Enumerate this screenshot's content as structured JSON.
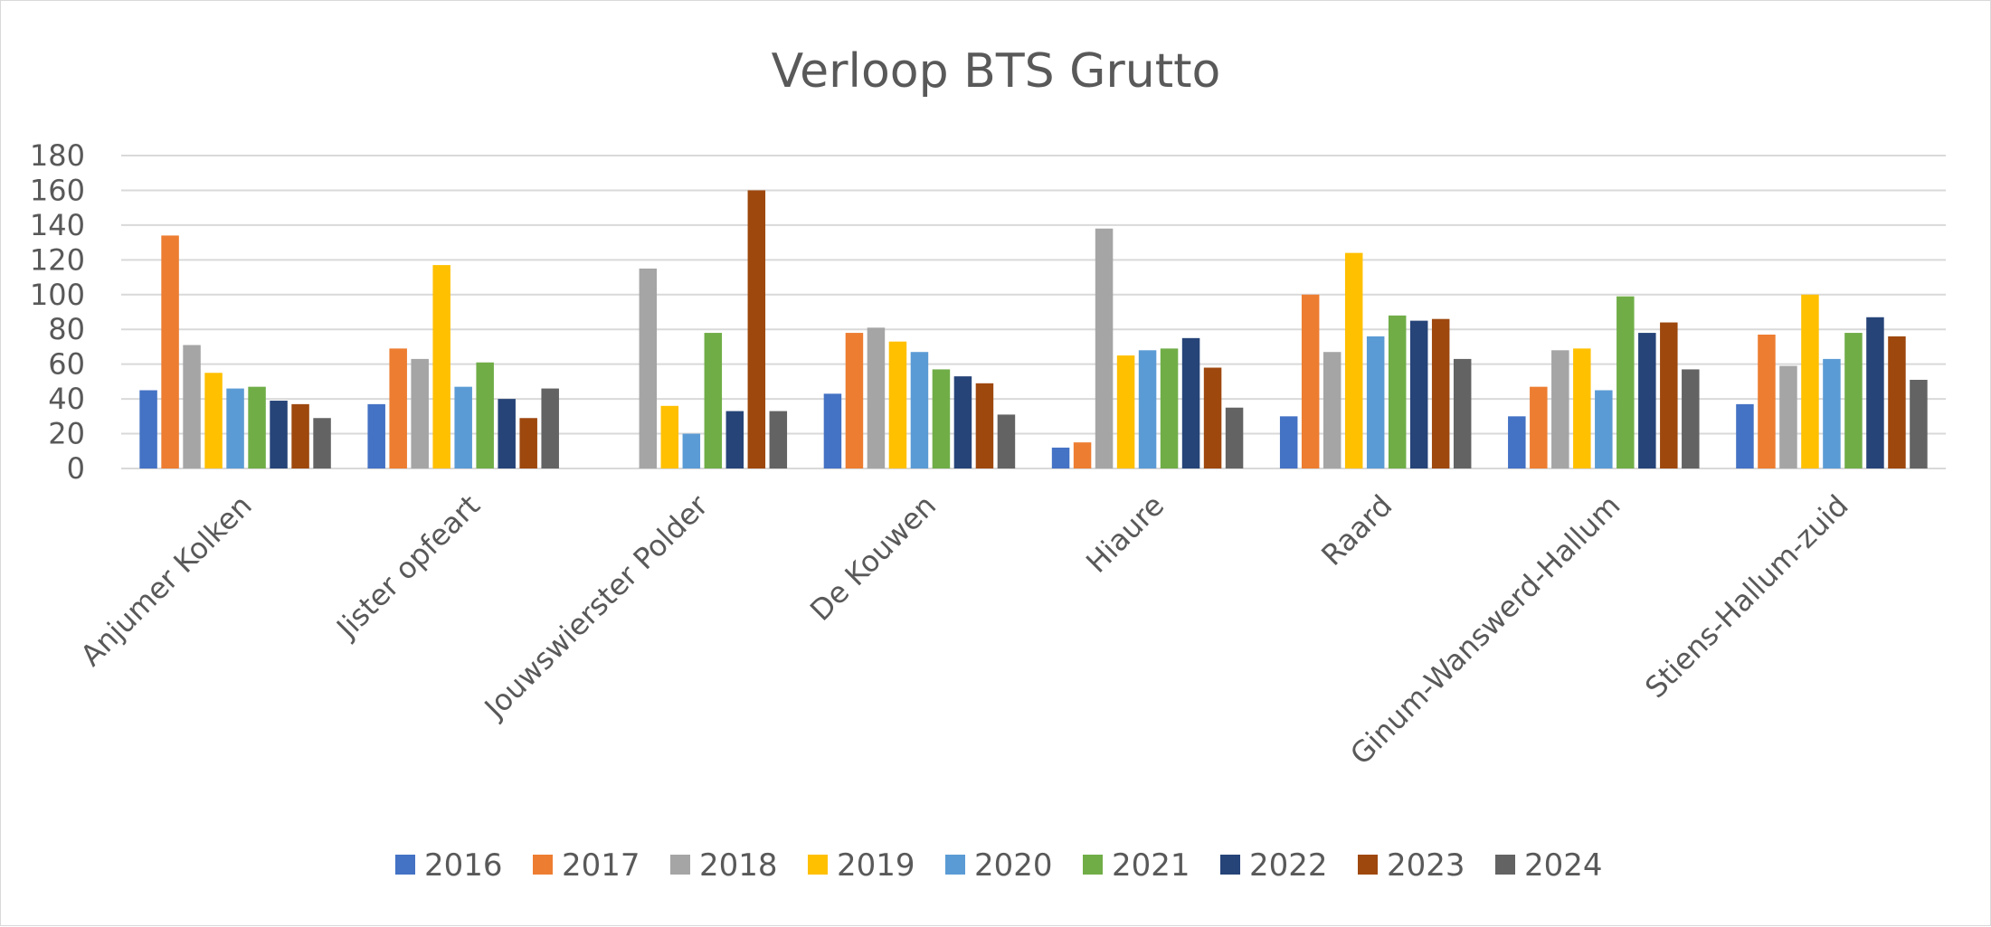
{
  "chart_data": {
    "type": "bar",
    "title": "Verloop BTS Grutto",
    "xlabel": "",
    "ylabel": "",
    "ylim": [
      0,
      180
    ],
    "yticks": [
      0,
      20,
      40,
      60,
      80,
      100,
      120,
      140,
      160,
      180
    ],
    "grid": true,
    "legend_position": "bottom",
    "categories": [
      "Anjumer Kolken",
      "Jister opfeart",
      "Jouwswierster Polder",
      "De Kouwen",
      "Hiaure",
      "Raard",
      "Ginum-Wanswerd-Hallum",
      "Stiens-Hallum-zuid"
    ],
    "series": [
      {
        "name": "2016",
        "color": "#4472c4",
        "values": [
          45,
          37,
          0,
          43,
          12,
          30,
          30,
          37
        ]
      },
      {
        "name": "2017",
        "color": "#ed7d31",
        "values": [
          134,
          69,
          0,
          78,
          15,
          100,
          47,
          77
        ]
      },
      {
        "name": "2018",
        "color": "#a5a5a5",
        "values": [
          71,
          63,
          115,
          81,
          138,
          67,
          68,
          59
        ]
      },
      {
        "name": "2019",
        "color": "#ffc000",
        "values": [
          55,
          117,
          36,
          73,
          65,
          124,
          69,
          100
        ]
      },
      {
        "name": "2020",
        "color": "#5b9bd5",
        "values": [
          46,
          47,
          20,
          67,
          68,
          76,
          45,
          63
        ]
      },
      {
        "name": "2021",
        "color": "#70ad47",
        "values": [
          47,
          61,
          78,
          57,
          69,
          88,
          99,
          78
        ]
      },
      {
        "name": "2022",
        "color": "#264478",
        "values": [
          39,
          40,
          33,
          53,
          75,
          85,
          78,
          87
        ]
      },
      {
        "name": "2023",
        "color": "#9e480e",
        "values": [
          37,
          29,
          160,
          49,
          58,
          86,
          84,
          76
        ]
      },
      {
        "name": "2024",
        "color": "#636363",
        "values": [
          29,
          46,
          33,
          31,
          35,
          63,
          57,
          51
        ]
      }
    ]
  }
}
